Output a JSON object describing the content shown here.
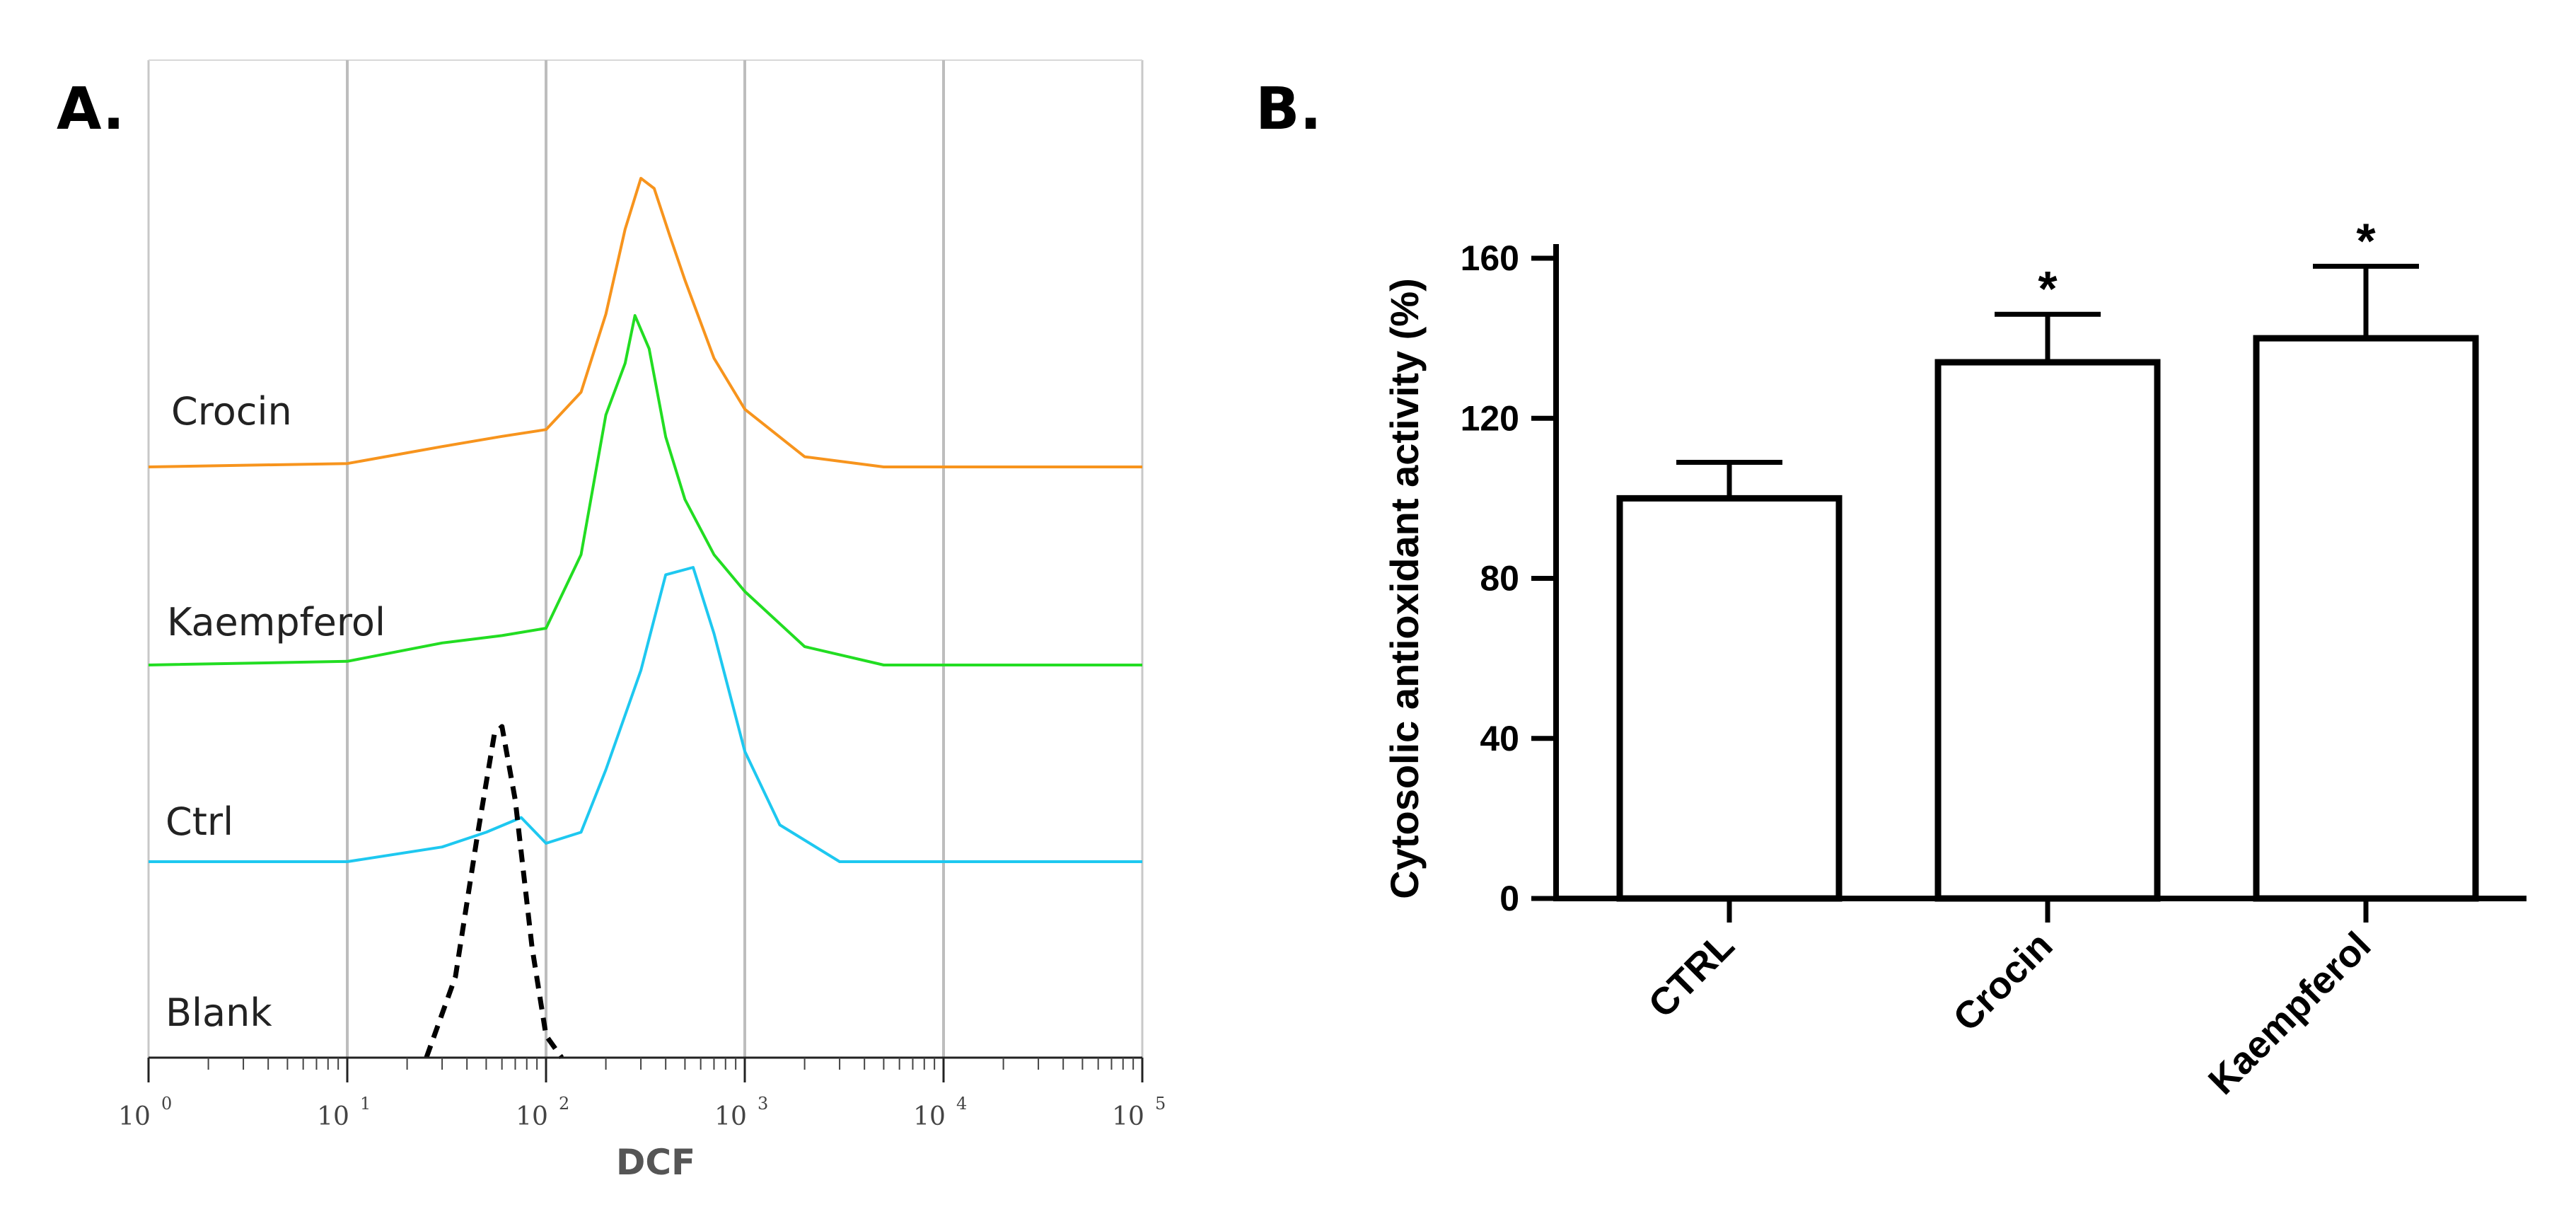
{
  "panel_a": {
    "label": "A.",
    "xlabel": "DCF",
    "xtick_base": "10",
    "xtick_exponents": [
      "0",
      "1",
      "2",
      "3",
      "4",
      "5"
    ],
    "series": [
      {
        "name": "Crocin",
        "color": "#F7941D",
        "style": "solid"
      },
      {
        "name": "Kaempferol",
        "color": "#22DD22",
        "style": "solid"
      },
      {
        "name": "Ctrl",
        "color": "#1EC8F0",
        "style": "solid"
      },
      {
        "name": "Blank",
        "color": "#000000",
        "style": "dashed"
      }
    ]
  },
  "panel_b": {
    "label": "B.",
    "significance_mark": "*"
  },
  "chart_data": [
    {
      "type": "line",
      "title": "",
      "xlabel": "DCF",
      "xscale": "log",
      "xlim": [
        1,
        100000
      ],
      "series": [
        {
          "name": "Crocin",
          "color": "#F7941D",
          "peak_x": 320,
          "peak_relative": 0.85,
          "x": [
            1,
            10,
            30,
            60,
            100,
            150,
            200,
            250,
            300,
            350,
            420,
            500,
            700,
            1000,
            2000,
            5000,
            100000
          ],
          "y": [
            0.0,
            0.01,
            0.06,
            0.09,
            0.11,
            0.22,
            0.45,
            0.7,
            0.85,
            0.82,
            0.68,
            0.55,
            0.32,
            0.17,
            0.03,
            0.0,
            0.0
          ]
        },
        {
          "name": "Kaempferol",
          "color": "#22DD22",
          "peak_x": 280,
          "peak_relative": 0.95,
          "x": [
            1,
            10,
            30,
            60,
            100,
            150,
            200,
            250,
            280,
            330,
            400,
            500,
            700,
            1000,
            2000,
            5000,
            100000
          ],
          "y": [
            0.0,
            0.01,
            0.06,
            0.08,
            0.1,
            0.3,
            0.68,
            0.82,
            0.95,
            0.86,
            0.62,
            0.45,
            0.3,
            0.2,
            0.05,
            0.0,
            0.0
          ]
        },
        {
          "name": "Ctrl",
          "color": "#1EC8F0",
          "peak_x": 550,
          "peak_relative": 0.8,
          "x": [
            1,
            10,
            30,
            50,
            75,
            100,
            150,
            200,
            300,
            400,
            550,
            700,
            1000,
            1500,
            3000,
            100000
          ],
          "y": [
            0.0,
            0.0,
            0.04,
            0.08,
            0.12,
            0.05,
            0.08,
            0.25,
            0.52,
            0.78,
            0.8,
            0.62,
            0.3,
            0.1,
            0.0,
            0.0
          ]
        },
        {
          "name": "Blank",
          "color": "#000000",
          "style": "dashed",
          "peak_x": 60,
          "peak_relative": 0.9,
          "x": [
            25,
            35,
            45,
            55,
            60,
            70,
            85,
            100,
            120
          ],
          "y": [
            0.0,
            0.22,
            0.6,
            0.88,
            0.9,
            0.7,
            0.3,
            0.06,
            0.0
          ]
        }
      ]
    },
    {
      "type": "bar",
      "title": "",
      "xlabel": "",
      "ylabel": "Cytosolic antioxidant activity (%)",
      "ylim": [
        0,
        160
      ],
      "yticks": [
        "0",
        "40",
        "80",
        "120",
        "160"
      ],
      "categories": [
        "CTRL",
        "Crocin",
        "Kaempferol"
      ],
      "values": [
        100,
        134,
        140
      ],
      "errors": [
        9,
        12,
        18
      ],
      "significance": [
        "",
        "*",
        "*"
      ]
    }
  ]
}
